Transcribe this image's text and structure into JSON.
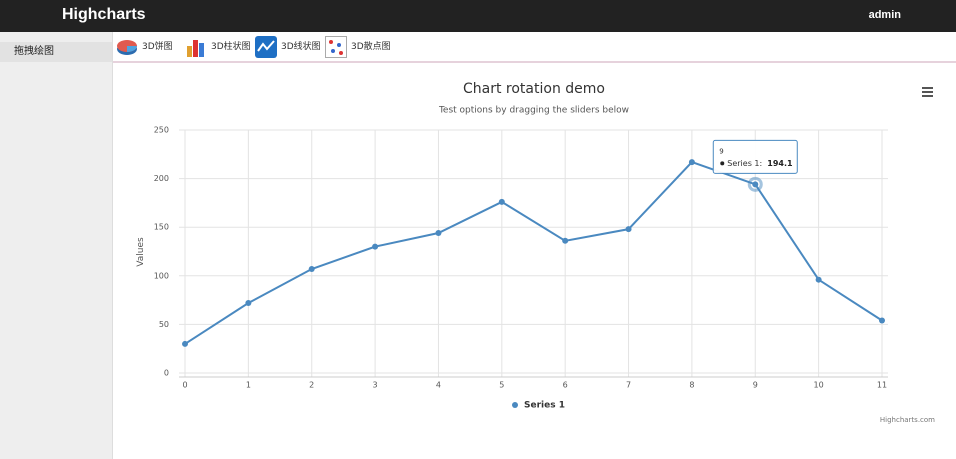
{
  "header": {
    "brand": "Highcharts",
    "user": "admin"
  },
  "sidebar": {
    "item": "拖拽绘图"
  },
  "toolbar": {
    "items": [
      "3D饼图",
      "3D柱状图",
      "3D线状图",
      "3D散点图"
    ]
  },
  "chart_data": {
    "type": "line",
    "title": "Chart rotation demo",
    "subtitle": "Test options by dragging the sliders below",
    "y_label": "Values",
    "credits": "Highcharts.com",
    "x": [
      0,
      1,
      2,
      3,
      4,
      5,
      6,
      7,
      8,
      9,
      10,
      11
    ],
    "series": [
      {
        "name": "Series 1",
        "color": "#4a89c0",
        "values": [
          29.9,
          72,
          107,
          130,
          144,
          176,
          136,
          148,
          217,
          194.1,
          96,
          54
        ]
      }
    ],
    "xlim": [
      0,
      11
    ],
    "xticks": [
      0,
      1,
      2,
      3,
      4,
      5,
      6,
      7,
      8,
      9,
      10,
      11
    ],
    "ylim": [
      0,
      250
    ],
    "yticks": [
      0,
      50,
      100,
      150,
      200,
      250
    ],
    "grid": true,
    "legend": "bottom",
    "tooltip": {
      "text": "Series 1:"
    }
  }
}
